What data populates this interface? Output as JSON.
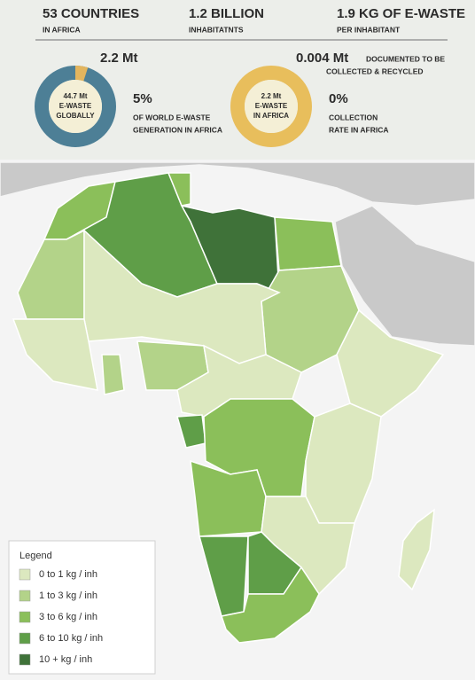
{
  "header": {
    "stats": [
      {
        "value": "53 COUNTRIES",
        "caption": "IN AFRICA"
      },
      {
        "value": "1.2 BILLION",
        "caption": "INHABITATNTS"
      },
      {
        "value": "1.9 KG OF E-WASTE",
        "caption": "PER INHABITANT"
      }
    ]
  },
  "donuts": [
    {
      "total_label": "2.2 Mt",
      "center_label": [
        "44.7 Mt",
        "E-WASTE",
        "GLOBALLY"
      ],
      "percent": {
        "value": 5,
        "label": "5%"
      },
      "caption": [
        "OF WORLD E-WASTE",
        "GENERATION IN AFRICA"
      ],
      "ring_color": "#4d7f96",
      "part_color": "#e3b55e"
    },
    {
      "total_label": "0.004 Mt",
      "total_caption": [
        "DOCUMENTED TO BE",
        "COLLECTED & RECYCLED"
      ],
      "center_label": [
        "2.2 Mt",
        "E-WASTE",
        "IN AFRICA"
      ],
      "percent": {
        "value": 0,
        "label": "0%"
      },
      "caption": [
        "COLLECTION",
        "RATE IN AFRICA"
      ],
      "ring_color": "#e8be5c",
      "part_color": "#4d7f96"
    }
  ],
  "legend": {
    "title": "Legend",
    "items": [
      {
        "label": "0 to 1 kg / inh",
        "color": "#dce8bf"
      },
      {
        "label": "1 to 3 kg / inh",
        "color": "#b3d389"
      },
      {
        "label": "3 to 6 kg / inh",
        "color": "#8bbf5a"
      },
      {
        "label": "6 to 10 kg / inh",
        "color": "#5f9e48"
      },
      {
        "label": "10 + kg / inh",
        "color": "#3f7239"
      }
    ]
  }
}
